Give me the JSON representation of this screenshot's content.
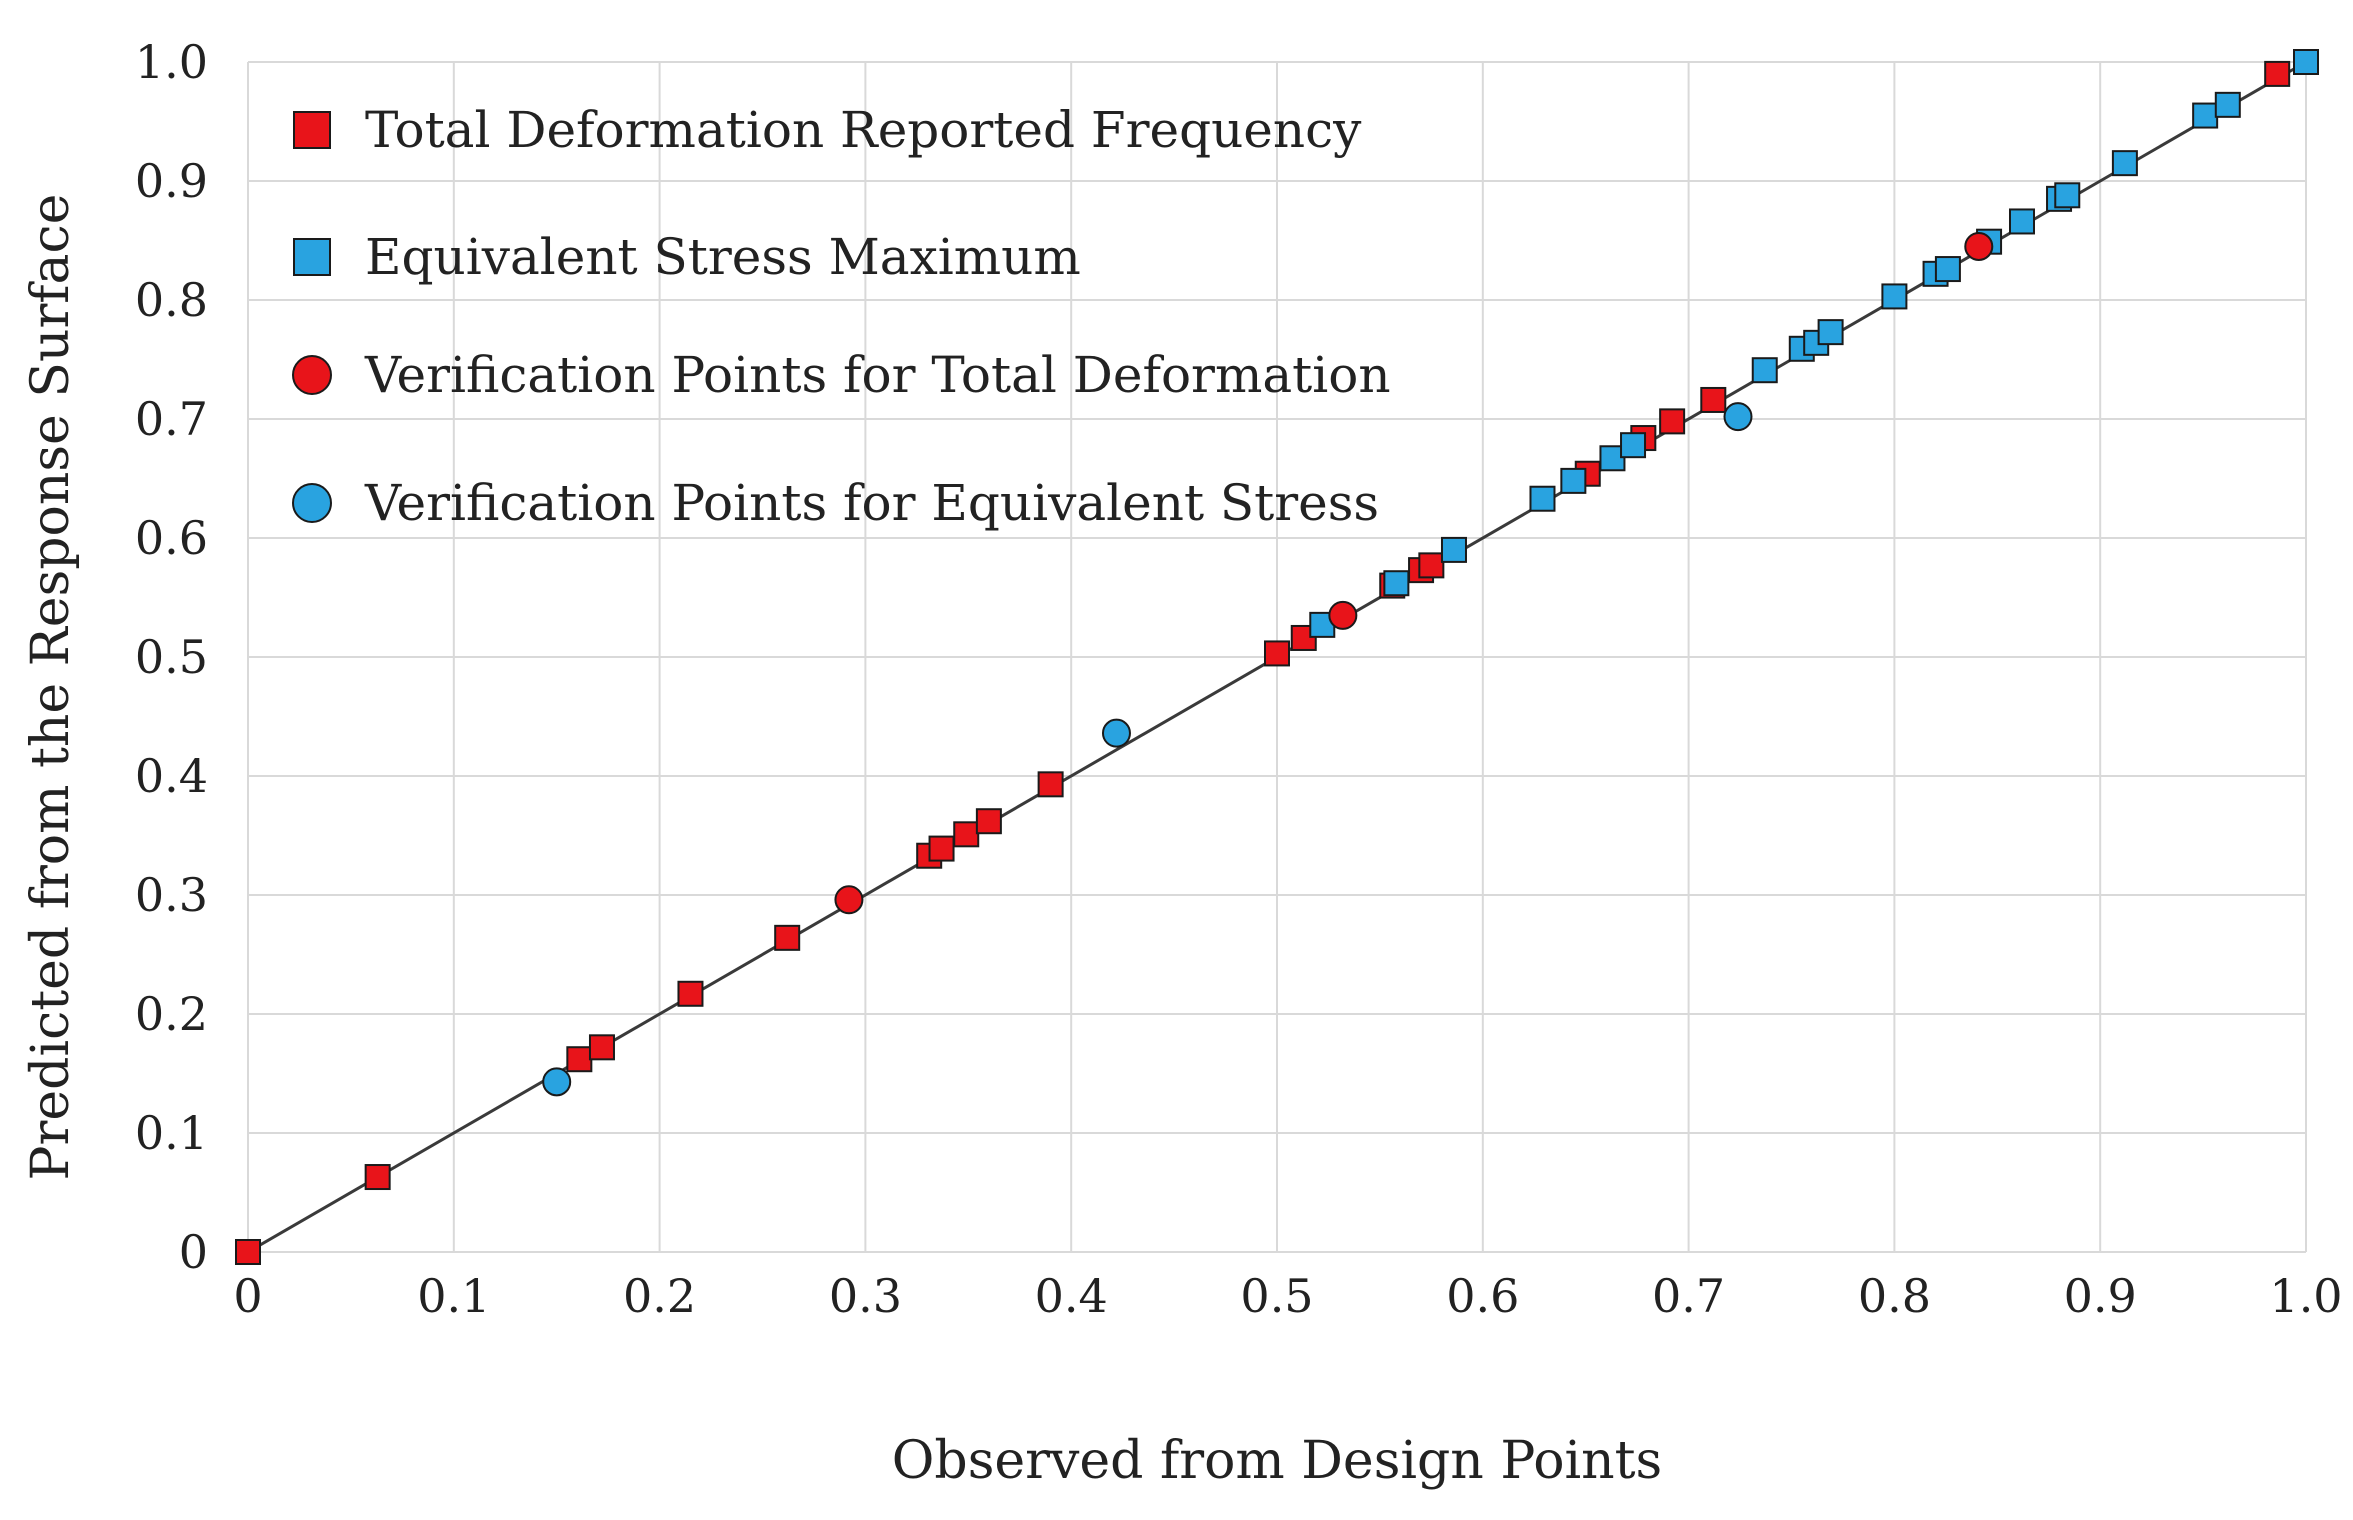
{
  "chart_data": {
    "type": "scatter",
    "title": "",
    "xlabel": "Observed from Design Points",
    "ylabel": "Predicted from the Response Surface",
    "xlim": [
      0,
      1.0
    ],
    "ylim": [
      0,
      1.0
    ],
    "grid": true,
    "legend_position": "top-left",
    "x_ticks": [
      "0",
      "0.1",
      "0.2",
      "0.3",
      "0.4",
      "0.5",
      "0.6",
      "0.7",
      "0.8",
      "0.9",
      "1.0"
    ],
    "y_ticks": [
      "0",
      "0.1",
      "0.2",
      "0.3",
      "0.4",
      "0.5",
      "0.6",
      "0.7",
      "0.8",
      "0.9",
      "1.0"
    ],
    "reference_line": {
      "from": [
        0,
        0
      ],
      "to": [
        1,
        1
      ]
    },
    "series": [
      {
        "name": "Total Deformation Reported Frequency",
        "marker": "square",
        "color": "#e8141a",
        "points": [
          [
            0.0,
            0.0
          ],
          [
            0.063,
            0.063
          ],
          [
            0.161,
            0.162
          ],
          [
            0.172,
            0.172
          ],
          [
            0.215,
            0.217
          ],
          [
            0.262,
            0.264
          ],
          [
            0.331,
            0.333
          ],
          [
            0.337,
            0.339
          ],
          [
            0.349,
            0.351
          ],
          [
            0.36,
            0.362
          ],
          [
            0.39,
            0.393
          ],
          [
            0.5,
            0.503
          ],
          [
            0.513,
            0.516
          ],
          [
            0.556,
            0.56
          ],
          [
            0.57,
            0.573
          ],
          [
            0.575,
            0.577
          ],
          [
            0.651,
            0.654
          ],
          [
            0.678,
            0.684
          ],
          [
            0.692,
            0.698
          ],
          [
            0.712,
            0.716
          ],
          [
            0.986,
            0.99
          ]
        ]
      },
      {
        "name": "Equivalent Stress Maximum",
        "marker": "square",
        "color": "#29a3e0",
        "points": [
          [
            0.522,
            0.527
          ],
          [
            0.558,
            0.562
          ],
          [
            0.586,
            0.59
          ],
          [
            0.629,
            0.633
          ],
          [
            0.644,
            0.648
          ],
          [
            0.663,
            0.667
          ],
          [
            0.673,
            0.678
          ],
          [
            0.737,
            0.741
          ],
          [
            0.755,
            0.759
          ],
          [
            0.762,
            0.764
          ],
          [
            0.769,
            0.773
          ],
          [
            0.8,
            0.803
          ],
          [
            0.82,
            0.822
          ],
          [
            0.826,
            0.826
          ],
          [
            0.846,
            0.849
          ],
          [
            0.862,
            0.866
          ],
          [
            0.88,
            0.885
          ],
          [
            0.884,
            0.888
          ],
          [
            0.912,
            0.915
          ],
          [
            0.951,
            0.955
          ],
          [
            0.962,
            0.964
          ],
          [
            1.0,
            1.0
          ]
        ]
      },
      {
        "name": "Verification Points for Total Deformation",
        "marker": "circle",
        "color": "#e8141a",
        "points": [
          [
            0.292,
            0.296
          ],
          [
            0.532,
            0.535
          ],
          [
            0.841,
            0.845
          ]
        ]
      },
      {
        "name": "Verification Points for Equivalent Stress",
        "marker": "circle",
        "color": "#29a3e0",
        "points": [
          [
            0.15,
            0.143
          ],
          [
            0.422,
            0.436
          ],
          [
            0.724,
            0.702
          ]
        ]
      }
    ]
  }
}
